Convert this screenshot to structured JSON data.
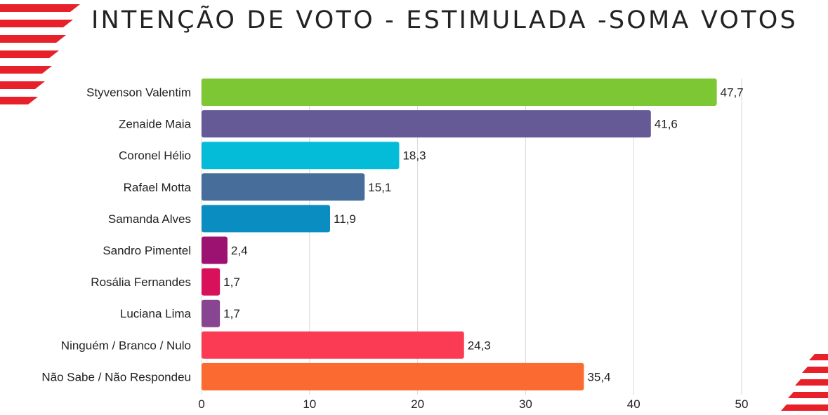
{
  "title": "INTENÇÃO DE VOTO - ESTIMULADA -SOMA VOTOS",
  "colors": {
    "background": "#ffffff",
    "decoration": "#e8202a",
    "grid": "#d9d9d9",
    "text": "#222222"
  },
  "chart_data": {
    "type": "bar",
    "orientation": "horizontal",
    "title": "INTENÇÃO DE VOTO - ESTIMULADA -SOMA VOTOS",
    "categories": [
      "Styvenson Valentim",
      "Zenaide Maia",
      "Coronel Hélio",
      "Rafael Motta",
      "Samanda Alves",
      "Sandro Pimentel",
      "Rosália Fernandes",
      "Luciana Lima",
      "Ninguém / Branco / Nulo",
      "Não Sabe / Não Respondeu"
    ],
    "values": [
      47.7,
      41.6,
      18.3,
      15.1,
      11.9,
      2.4,
      1.7,
      1.7,
      24.3,
      35.4
    ],
    "value_labels": [
      "47,7",
      "41,6",
      "18,3",
      "15,1",
      "11,9",
      "2,4",
      "1,7",
      "1,7",
      "24,3",
      "35,4"
    ],
    "colors": [
      "#7dc734",
      "#665a96",
      "#04bcd8",
      "#476e9b",
      "#0a8ec1",
      "#9c1271",
      "#d9105a",
      "#884592",
      "#fb3b53",
      "#fb6a30"
    ],
    "xlim": [
      0,
      50
    ],
    "xticks": [
      0,
      10,
      20,
      30,
      40,
      50
    ],
    "xtick_labels": [
      "0",
      "10",
      "20",
      "30",
      "40",
      "50"
    ],
    "grid": true,
    "legend": "none"
  }
}
